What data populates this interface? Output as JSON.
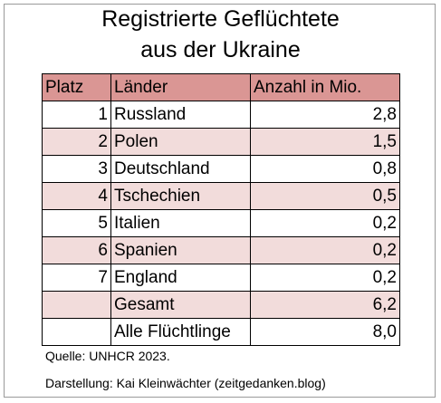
{
  "chart_data": {
    "type": "table",
    "title_lines": [
      "Registrierte Geflüchtete",
      "aus der Ukraine"
    ],
    "columns": [
      "Platz",
      "Länder",
      "Anzahl in Mio."
    ],
    "rows": [
      {
        "rank": "1",
        "country": "Russland",
        "value": "2,8",
        "shade": "white"
      },
      {
        "rank": "2",
        "country": "Polen",
        "value": "1,5",
        "shade": "pink"
      },
      {
        "rank": "3",
        "country": "Deutschland",
        "value": "0,8",
        "shade": "white"
      },
      {
        "rank": "4",
        "country": "Tschechien",
        "value": "0,5",
        "shade": "pink"
      },
      {
        "rank": "5",
        "country": "Italien",
        "value": "0,2",
        "shade": "white"
      },
      {
        "rank": "6",
        "country": "Spanien",
        "value": "0,2",
        "shade": "pink"
      },
      {
        "rank": "7",
        "country": "England",
        "value": "0,2",
        "shade": "white"
      },
      {
        "rank": "",
        "country": "Gesamt",
        "value": "6,2",
        "shade": "pink"
      },
      {
        "rank": "",
        "country": "Alle Flüchtlinge",
        "value": "8,0",
        "shade": "white"
      }
    ],
    "source": "Quelle: UNHCR 2023.",
    "credit": "Darstellung: Kai Kleinwächter (zeitgedanken.blog)"
  },
  "colors": {
    "header_fill": "#da9694",
    "row_alt_fill": "#f2dcdb",
    "row_fill": "#ffffff",
    "frame": "#9a9a9a"
  }
}
